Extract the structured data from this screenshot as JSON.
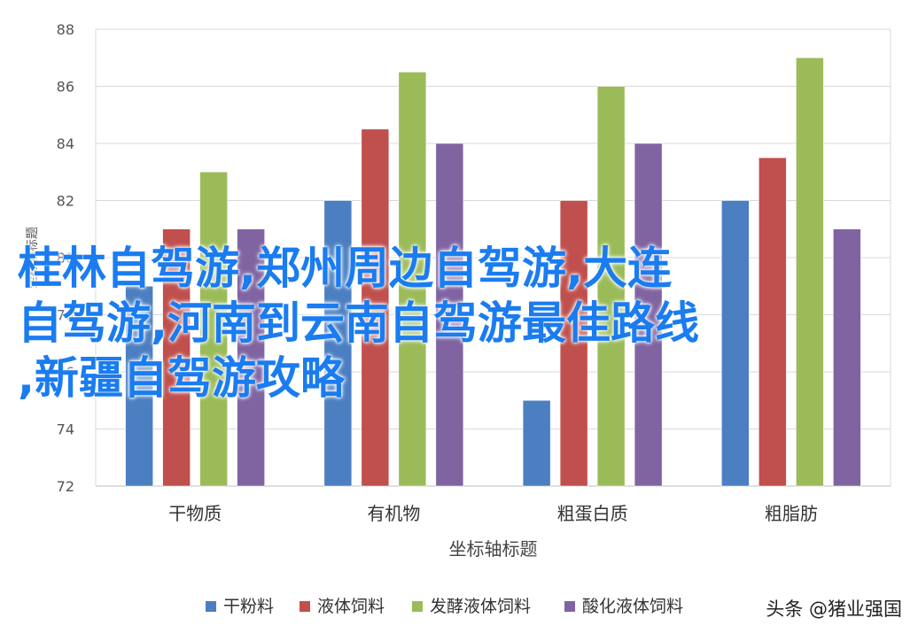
{
  "chart_data": {
    "type": "bar",
    "title": "",
    "xlabel": "坐标轴标题",
    "ylabel": "坐标轴标题",
    "categories": [
      "干物质",
      "有机物",
      "粗蛋白质",
      "粗脂肪"
    ],
    "series": [
      {
        "name": "干粉料",
        "color": "#4b7fc1",
        "values": [
          79,
          82,
          75,
          82
        ]
      },
      {
        "name": "液体饲料",
        "color": "#c0504d",
        "values": [
          81,
          84.5,
          82,
          83.5
        ]
      },
      {
        "name": "发酵液体饲料",
        "color": "#9bbb59",
        "values": [
          83,
          86.5,
          86,
          87
        ]
      },
      {
        "name": "酸化液体饲料",
        "color": "#8064a2",
        "values": [
          81,
          84,
          84,
          81
        ]
      }
    ],
    "ylim": [
      72,
      88
    ],
    "yticks": [
      "72",
      "74",
      "76",
      "78",
      "80",
      "82",
      "84",
      "86",
      "88"
    ],
    "grid": true,
    "legend_position": "bottom"
  },
  "overlay": {
    "headline": "桂林自驾游,郑州周边自驾游,大连\n自驾游,河南到云南自驾游最佳路线\n,新疆自驾游攻略"
  },
  "watermark": {
    "text": "头条 @猪业强国"
  }
}
